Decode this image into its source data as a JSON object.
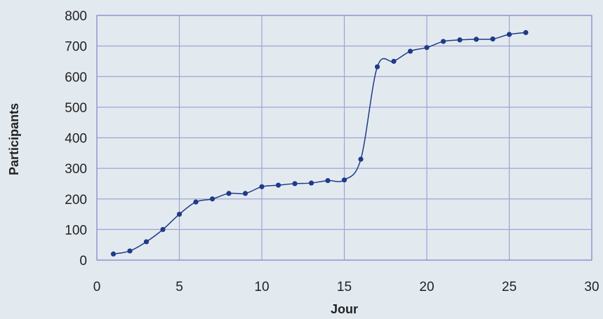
{
  "chart_data": {
    "type": "line",
    "title": "",
    "xlabel": "Jour",
    "ylabel": "Participants",
    "xlim": [
      0,
      30
    ],
    "ylim": [
      0,
      800
    ],
    "x_ticks": [
      0,
      5,
      10,
      15,
      20,
      25,
      30
    ],
    "y_ticks": [
      0,
      100,
      200,
      300,
      400,
      500,
      600,
      700,
      800
    ],
    "grid": true,
    "legend": "none",
    "series": [
      {
        "color": "#1f3a8a",
        "marker": "circle",
        "smooth": true,
        "x": [
          1,
          2,
          3,
          4,
          5,
          6,
          7,
          8,
          9,
          10,
          11,
          12,
          13,
          14,
          15,
          16,
          17,
          18,
          19,
          20,
          21,
          22,
          23,
          24,
          25,
          26
        ],
        "y": [
          20,
          30,
          60,
          100,
          150,
          190,
          200,
          218,
          218,
          240,
          245,
          250,
          252,
          260,
          262,
          330,
          632,
          650,
          683,
          695,
          715,
          720,
          722,
          723,
          738,
          744
        ]
      }
    ]
  },
  "colors": {
    "background": "#e3eaef",
    "grid": "#9ea3d6",
    "line": "#1f3a8a",
    "text": "#222222"
  }
}
